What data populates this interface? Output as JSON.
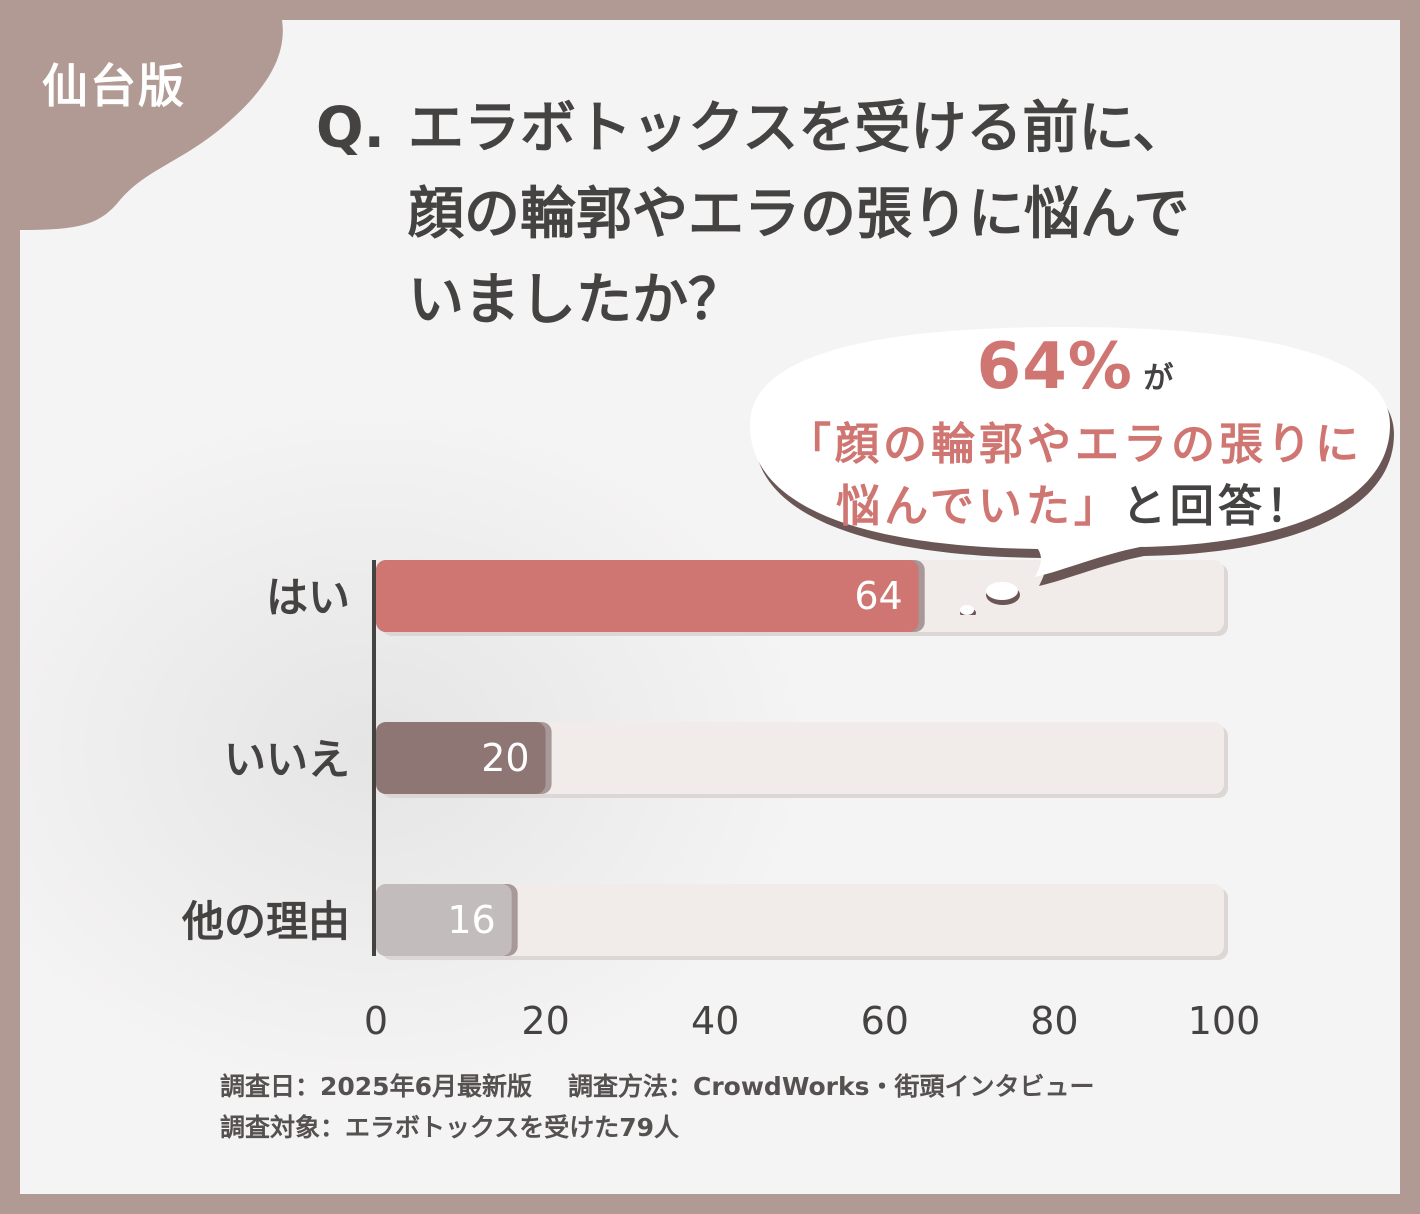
{
  "corner_label": "仙台版",
  "question": {
    "prefix": "Q.",
    "lines": [
      "エラボトックスを受ける前に、",
      "顔の輪郭やエラの張りに悩んで",
      "いましたか？"
    ]
  },
  "callout": {
    "percent": "64%",
    "particle": "が",
    "line2": "「顔の輪郭やエラの張りに",
    "line3_accent": "悩んでいた」",
    "line3_rest": "と回答！"
  },
  "chart_data": {
    "type": "bar",
    "orientation": "horizontal",
    "categories": [
      "はい",
      "いいえ",
      "他の理由"
    ],
    "values": [
      64,
      20,
      16
    ],
    "value_labels": [
      "64",
      "20",
      "16"
    ],
    "colors": [
      "#d07672",
      "#8e7675",
      "#c2bdbc"
    ],
    "xlim": [
      0,
      100
    ],
    "xticks": [
      0,
      20,
      40,
      60,
      80,
      100
    ],
    "xtick_labels": [
      "0",
      "20",
      "40",
      "60",
      "80",
      "100"
    ],
    "track_color": "#f1ecea"
  },
  "footer": {
    "survey_date": "調査日：2025年6月最新版",
    "survey_method": "調査方法：CrowdWorks・街頭インタビュー",
    "survey_target": "調査対象：エラボトックスを受けた79人"
  }
}
